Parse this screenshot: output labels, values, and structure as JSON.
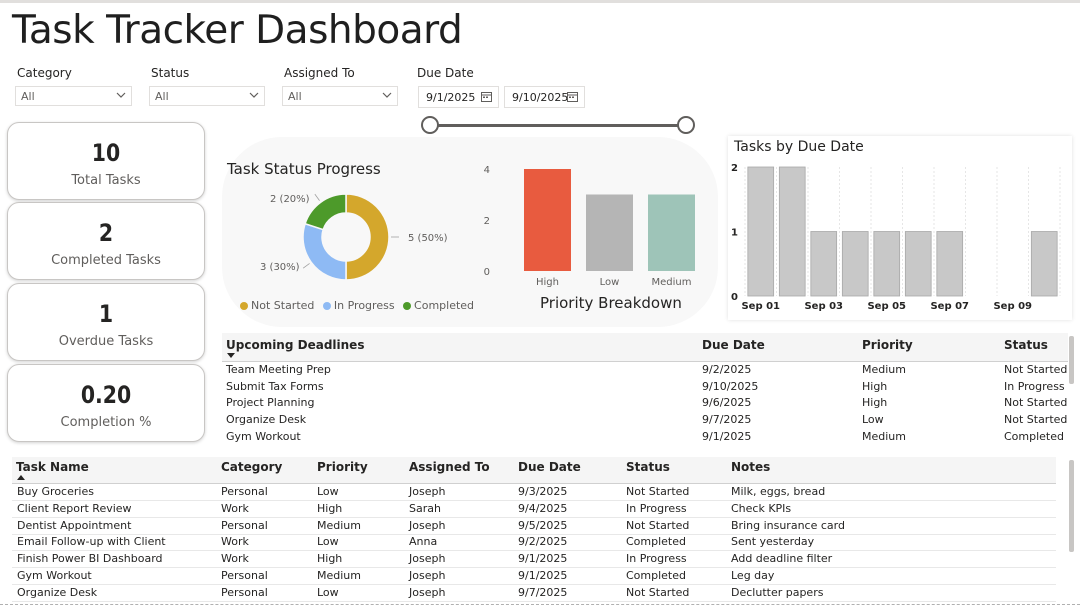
{
  "title": "Task Tracker Dashboard",
  "slicers": {
    "category": {
      "label": "Category",
      "value": "All"
    },
    "status": {
      "label": "Status",
      "value": "All"
    },
    "assigned_to": {
      "label": "Assigned To",
      "value": "All"
    },
    "due_date": {
      "label": "Due Date",
      "start": "9/1/2025",
      "end": "9/10/2025"
    }
  },
  "kpis": [
    {
      "value": "10",
      "label": "Total Tasks"
    },
    {
      "value": "2",
      "label": "Completed Tasks"
    },
    {
      "value": "1",
      "label": "Overdue Tasks"
    },
    {
      "value": "0.20",
      "label": "Completion %"
    }
  ],
  "donut": {
    "title": "Task Status Progress",
    "slices": [
      {
        "name": "Not Started",
        "value": 5,
        "label": "5 (50%)",
        "color": "#d4a72c"
      },
      {
        "name": "In Progress",
        "value": 3,
        "label": "3 (30%)",
        "color": "#8ebaf4"
      },
      {
        "name": "Completed",
        "value": 2,
        "label": "2 (20%)",
        "color": "#4d9a2a"
      }
    ]
  },
  "chart_data": [
    {
      "type": "bar",
      "title": "Priority Breakdown",
      "categories": [
        "High",
        "Low",
        "Medium"
      ],
      "values": [
        4,
        3,
        3
      ],
      "colors": [
        "#e85b3f",
        "#b5b5b5",
        "#9ec4b8"
      ],
      "yticks": [
        "0",
        "2",
        "4"
      ],
      "ylim": [
        0,
        4
      ]
    },
    {
      "type": "bar",
      "title": "Tasks by Due Date",
      "categories": [
        "Sep 01",
        "Sep 02",
        "Sep 03",
        "Sep 04",
        "Sep 05",
        "Sep 06",
        "Sep 07",
        "Sep 08",
        "Sep 09",
        "Sep 10"
      ],
      "tick_labels": [
        "Sep 01",
        "Sep 03",
        "Sep 05",
        "Sep 07",
        "Sep 09"
      ],
      "values": [
        2,
        2,
        1,
        1,
        1,
        1,
        1,
        0,
        0,
        1
      ],
      "yticks": [
        "0",
        "1",
        "2"
      ],
      "ylim": [
        0,
        2
      ],
      "color": "#c8c8c8"
    }
  ],
  "upcoming": {
    "headers": [
      "Upcoming Deadlines",
      "Due Date",
      "Priority",
      "Status"
    ],
    "rows": [
      [
        "Team Meeting Prep",
        "9/2/2025",
        "Medium",
        "Not Started"
      ],
      [
        "Submit Tax Forms",
        "9/10/2025",
        "High",
        "In Progress"
      ],
      [
        "Project Planning",
        "9/6/2025",
        "High",
        "Not Started"
      ],
      [
        "Organize Desk",
        "9/7/2025",
        "Low",
        "Not Started"
      ],
      [
        "Gym Workout",
        "9/1/2025",
        "Medium",
        "Completed"
      ]
    ]
  },
  "tasks": {
    "headers": [
      "Task Name",
      "Category",
      "Priority",
      "Assigned To",
      "Due Date",
      "Status",
      "Notes"
    ],
    "rows": [
      [
        "Buy Groceries",
        "Personal",
        "Low",
        "Joseph",
        "9/3/2025",
        "Not Started",
        "Milk, eggs, bread"
      ],
      [
        "Client Report Review",
        "Work",
        "High",
        "Sarah",
        "9/4/2025",
        "In Progress",
        "Check KPIs"
      ],
      [
        "Dentist Appointment",
        "Personal",
        "Medium",
        "Joseph",
        "9/5/2025",
        "Not Started",
        "Bring insurance card"
      ],
      [
        "Email Follow-up with Client",
        "Work",
        "Low",
        "Anna",
        "9/2/2025",
        "Completed",
        "Sent yesterday"
      ],
      [
        "Finish Power BI Dashboard",
        "Work",
        "High",
        "Joseph",
        "9/1/2025",
        "In Progress",
        "Add deadline filter"
      ],
      [
        "Gym Workout",
        "Personal",
        "Medium",
        "Joseph",
        "9/1/2025",
        "Completed",
        "Leg day"
      ],
      [
        "Organize Desk",
        "Personal",
        "Low",
        "Joseph",
        "9/7/2025",
        "Not Started",
        "Declutter papers"
      ]
    ]
  }
}
